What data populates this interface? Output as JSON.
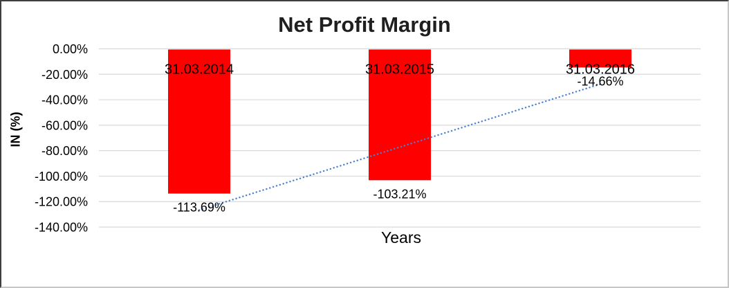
{
  "chart_data": {
    "type": "bar",
    "title": "Net Profit Margin",
    "xlabel": "Years",
    "ylabel": "IN (%)",
    "categories": [
      "31.03.2014",
      "31.03.2015",
      "31.03.2016"
    ],
    "values": [
      -113.69,
      -103.21,
      -14.66
    ],
    "data_labels": [
      "-113.69%",
      "-103.21%",
      "-14.66%"
    ],
    "ylim": [
      -140,
      0
    ],
    "ytick_step": 20,
    "ytick_labels": [
      "0.00%",
      "-20.00%",
      "-40.00%",
      "-60.00%",
      "-80.00%",
      "-100.00%",
      "-120.00%",
      "-140.00%"
    ],
    "grid": true,
    "legend": "none",
    "bar_color": "#FF0000",
    "gridline_color": "#D9D9D9",
    "trendline": {
      "type": "linear",
      "style": "dotted",
      "color": "#4A7FD4",
      "start_value": -126.7,
      "end_value": -27.7
    }
  }
}
